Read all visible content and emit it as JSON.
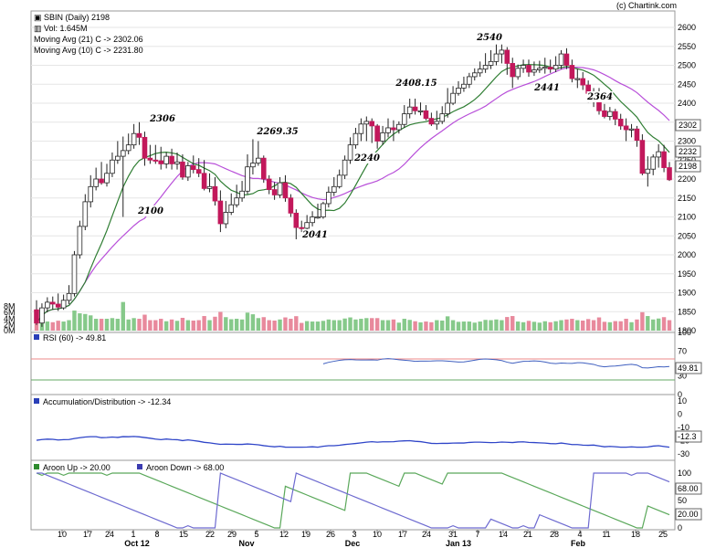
{
  "copyright": "(c) Chartink.com",
  "price_panel": {
    "ticker_label": "SBIN (Daily) 2198",
    "volume_label": "Vol: 1.645M",
    "ma21_label": "Moving Avg (21) C -> 2302.06",
    "ma10_label": "Moving Avg (10) C -> 2231.80",
    "y_ticks": [
      "2600",
      "2550",
      "2500",
      "2450",
      "2400",
      "2350",
      "2300",
      "2250",
      "2200",
      "2150",
      "2100",
      "2050",
      "2000",
      "1950",
      "1900",
      "1850",
      "1800"
    ],
    "volume_ticks": [
      "8M",
      "6M",
      "4M",
      "2M",
      "0M"
    ],
    "value_tags": [
      "2302",
      "2232",
      "2198"
    ],
    "annotations": [
      "2306",
      "2100",
      "2269.35",
      "2240",
      "2041",
      "2408.15",
      "2540",
      "2441",
      "2364"
    ]
  },
  "rsi_panel": {
    "label": "RSI (60) -> 49.81",
    "ticks": [
      "100",
      "70",
      "30",
      "0"
    ],
    "value_tag": "49.81"
  },
  "ad_panel": {
    "label": "Accumulation/Distribution -> -12.34",
    "ticks": [
      "10",
      "0",
      "-10",
      "-20",
      "-30"
    ],
    "value_tag": "-12.3"
  },
  "aroon_panel": {
    "up_label": "Aroon Up -> 20.00",
    "down_label": "Aroon Down -> 68.00",
    "ticks": [
      "100",
      "50",
      "0"
    ],
    "tag_up": "20.00",
    "tag_down": "68.00"
  },
  "x_axis": {
    "day_ticks": [
      "10",
      "17",
      "24",
      "1",
      "8",
      "15",
      "22",
      "29",
      "5",
      "12",
      "19",
      "26",
      "3",
      "10",
      "17",
      "24",
      "31",
      "7",
      "14",
      "21",
      "28",
      "4",
      "11",
      "18",
      "25"
    ],
    "month_labels": [
      "Oct 12",
      "Nov",
      "Dec",
      "Jan 13",
      "Feb"
    ]
  },
  "colors": {
    "up": "#ffffff",
    "down": "#c2185b",
    "ma21": "#b84fd9",
    "ma10": "#2e7d32",
    "vol_up": "#86c98a",
    "vol_down": "#e8899c",
    "rsi_line": "#3f5fbf",
    "ad_line": "#2f45c8",
    "aroon_up": "#5aa85a",
    "aroon_down": "#6d6ad0"
  },
  "chart_data": {
    "type": "candlestick",
    "dates": [
      "2012-09-06",
      "2012-09-07",
      "2012-09-10",
      "2012-09-11",
      "2012-09-12",
      "2012-09-13",
      "2012-09-14",
      "2012-09-17",
      "2012-09-18",
      "2012-09-20",
      "2012-09-21",
      "2012-09-24",
      "2012-09-25",
      "2012-09-26",
      "2012-09-27",
      "2012-09-28",
      "2012-10-01",
      "2012-10-03",
      "2012-10-04",
      "2012-10-05",
      "2012-10-08",
      "2012-10-09",
      "2012-10-10",
      "2012-10-11",
      "2012-10-12",
      "2012-10-15",
      "2012-10-16",
      "2012-10-17",
      "2012-10-18",
      "2012-10-19",
      "2012-10-22",
      "2012-10-23",
      "2012-10-25",
      "2012-10-26",
      "2012-10-29",
      "2012-10-30",
      "2012-10-31",
      "2012-11-01",
      "2012-11-02",
      "2012-11-05",
      "2012-11-06",
      "2012-11-07",
      "2012-11-08",
      "2012-11-09",
      "2012-11-12",
      "2012-11-13",
      "2012-11-15",
      "2012-11-16",
      "2012-11-19",
      "2012-11-20",
      "2012-11-21",
      "2012-11-22",
      "2012-11-23",
      "2012-11-26",
      "2012-11-27",
      "2012-11-29",
      "2012-11-30",
      "2012-12-03",
      "2012-12-04",
      "2012-12-05",
      "2012-12-06",
      "2012-12-07",
      "2012-12-10",
      "2012-12-11",
      "2012-12-12",
      "2012-12-13",
      "2012-12-14",
      "2012-12-17",
      "2012-12-18",
      "2012-12-19",
      "2012-12-20",
      "2012-12-21",
      "2012-12-24",
      "2012-12-26",
      "2012-12-27",
      "2012-12-28",
      "2012-12-31",
      "2013-01-01",
      "2013-01-02",
      "2013-01-03",
      "2013-01-04",
      "2013-01-07",
      "2013-01-08",
      "2013-01-09",
      "2013-01-10",
      "2013-01-11",
      "2013-01-14",
      "2013-01-15",
      "2013-01-16",
      "2013-01-17",
      "2013-01-18",
      "2013-01-21",
      "2013-01-22",
      "2013-01-23",
      "2013-01-24",
      "2013-01-25",
      "2013-01-28",
      "2013-01-29",
      "2013-01-30",
      "2013-01-31",
      "2013-02-01",
      "2013-02-04",
      "2013-02-05",
      "2013-02-06",
      "2013-02-07",
      "2013-02-08",
      "2013-02-11",
      "2013-02-12",
      "2013-02-13",
      "2013-02-14",
      "2013-02-15",
      "2013-02-18",
      "2013-02-19",
      "2013-02-20",
      "2013-02-21",
      "2013-02-22",
      "2013-02-25",
      "2013-02-26"
    ],
    "open": [
      1855,
      1820,
      1860,
      1875,
      1870,
      1860,
      1880,
      1898,
      2000,
      2075,
      2140,
      2180,
      2200,
      2190,
      2215,
      2250,
      2260,
      2275,
      2290,
      2320,
      2310,
      2255,
      2250,
      2248,
      2240,
      2260,
      2240,
      2245,
      2205,
      2235,
      2225,
      2215,
      2175,
      2180,
      2142,
      2082,
      2112,
      2132,
      2150,
      2168,
      2232,
      2242,
      2255,
      2200,
      2172,
      2158,
      2190,
      2150,
      2110,
      2072,
      2070,
      2085,
      2100,
      2100,
      2135,
      2165,
      2180,
      2210,
      2250,
      2290,
      2320,
      2345,
      2352,
      2340,
      2300,
      2322,
      2335,
      2330,
      2344,
      2372,
      2390,
      2380,
      2380,
      2360,
      2345,
      2352,
      2372,
      2400,
      2426,
      2440,
      2450,
      2470,
      2480,
      2490,
      2500,
      2510,
      2530,
      2540,
      2505,
      2470,
      2492,
      2500,
      2482,
      2488,
      2492,
      2495,
      2490,
      2500,
      2530,
      2500,
      2465,
      2465,
      2448,
      2426,
      2420,
      2380,
      2365,
      2378,
      2358,
      2340,
      2330,
      2332,
      2302,
      2215,
      2226,
      2258,
      2272,
      2230
    ],
    "high": [
      1880,
      1872,
      1888,
      1890,
      1898,
      1895,
      1920,
      2010,
      2090,
      2160,
      2210,
      2230,
      2245,
      2240,
      2270,
      2300,
      2312,
      2320,
      2345,
      2350,
      2325,
      2290,
      2290,
      2285,
      2270,
      2280,
      2270,
      2265,
      2245,
      2262,
      2255,
      2250,
      2215,
      2205,
      2170,
      2142,
      2162,
      2185,
      2195,
      2265,
      2305,
      2300,
      2262,
      2210,
      2192,
      2205,
      2210,
      2160,
      2120,
      2090,
      2105,
      2115,
      2135,
      2140,
      2180,
      2205,
      2225,
      2262,
      2310,
      2335,
      2360,
      2365,
      2360,
      2345,
      2340,
      2360,
      2355,
      2352,
      2395,
      2412,
      2412,
      2402,
      2395,
      2375,
      2380,
      2392,
      2440,
      2445,
      2458,
      2470,
      2480,
      2492,
      2510,
      2532,
      2540,
      2555,
      2555,
      2548,
      2520,
      2502,
      2515,
      2515,
      2510,
      2512,
      2520,
      2515,
      2524,
      2540,
      2545,
      2515,
      2490,
      2482,
      2460,
      2440,
      2440,
      2398,
      2390,
      2385,
      2372,
      2360,
      2345,
      2340,
      2318,
      2260,
      2265,
      2292,
      2290,
      2245
    ],
    "low": [
      1815,
      1810,
      1848,
      1855,
      1852,
      1855,
      1870,
      1890,
      1990,
      2065,
      2125,
      2170,
      2185,
      2180,
      2205,
      2240,
      2100,
      2265,
      2280,
      2290,
      2235,
      2240,
      2240,
      2225,
      2228,
      2225,
      2225,
      2198,
      2195,
      2215,
      2205,
      2170,
      2165,
      2130,
      2060,
      2070,
      2105,
      2125,
      2140,
      2160,
      2212,
      2235,
      2190,
      2160,
      2145,
      2150,
      2140,
      2100,
      2041,
      2060,
      2062,
      2075,
      2095,
      2095,
      2125,
      2155,
      2175,
      2200,
      2240,
      2280,
      2300,
      2300,
      2295,
      2280,
      2290,
      2310,
      2300,
      2320,
      2335,
      2360,
      2370,
      2368,
      2355,
      2340,
      2330,
      2345,
      2362,
      2395,
      2420,
      2430,
      2440,
      2460,
      2470,
      2480,
      2490,
      2500,
      2505,
      2475,
      2440,
      2462,
      2480,
      2470,
      2472,
      2480,
      2478,
      2480,
      2482,
      2490,
      2490,
      2455,
      2440,
      2435,
      2402,
      2390,
      2370,
      2360,
      2355,
      2342,
      2330,
      2300,
      2310,
      2285,
      2210,
      2180,
      2210,
      2230,
      2218,
      2195
    ],
    "close": [
      1820,
      1860,
      1875,
      1870,
      1862,
      1880,
      1898,
      2000,
      2075,
      2140,
      2180,
      2200,
      2190,
      2215,
      2250,
      2260,
      2275,
      2290,
      2320,
      2310,
      2255,
      2250,
      2248,
      2240,
      2260,
      2240,
      2245,
      2205,
      2235,
      2225,
      2215,
      2175,
      2180,
      2142,
      2082,
      2112,
      2132,
      2150,
      2168,
      2232,
      2242,
      2255,
      2200,
      2172,
      2158,
      2190,
      2150,
      2110,
      2072,
      2070,
      2085,
      2100,
      2100,
      2135,
      2165,
      2180,
      2210,
      2250,
      2290,
      2320,
      2345,
      2352,
      2340,
      2300,
      2322,
      2335,
      2330,
      2344,
      2372,
      2390,
      2380,
      2380,
      2360,
      2345,
      2352,
      2372,
      2400,
      2426,
      2440,
      2450,
      2470,
      2480,
      2490,
      2500,
      2510,
      2530,
      2540,
      2505,
      2470,
      2492,
      2500,
      2482,
      2488,
      2492,
      2495,
      2490,
      2500,
      2530,
      2500,
      2465,
      2465,
      2448,
      2426,
      2420,
      2380,
      2365,
      2378,
      2358,
      2340,
      2330,
      2332,
      2302,
      2215,
      2226,
      2258,
      2272,
      2230,
      2198
    ]
  }
}
